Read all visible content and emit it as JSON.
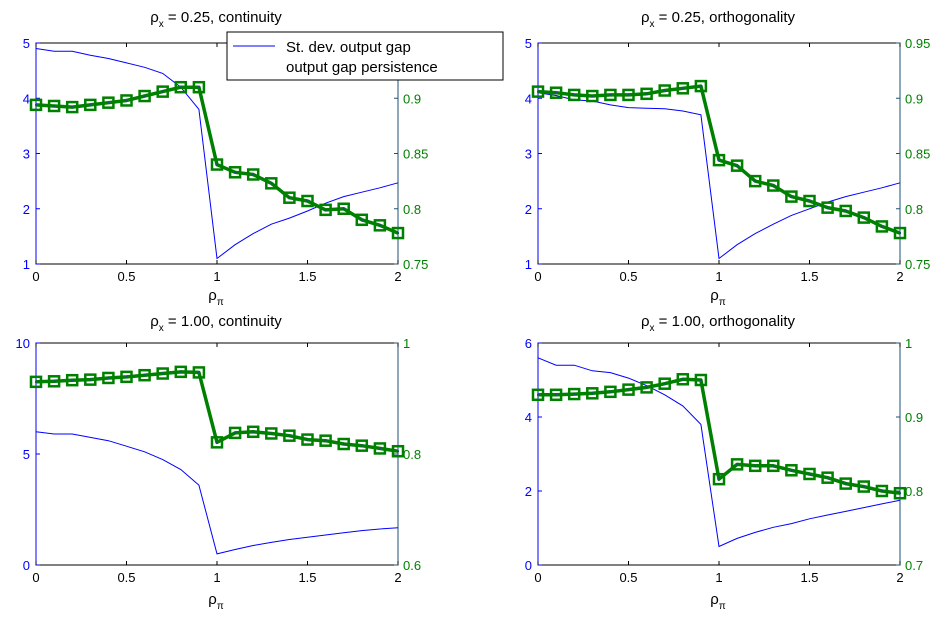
{
  "colors": {
    "left_axis": "#0000ff",
    "right_axis": "#008000",
    "std_line": "#0000ff",
    "persistence_line": "#008000",
    "axes_box": "#000000"
  },
  "legend": {
    "placement": "top-center",
    "entries": [
      "St. dev. output gap",
      "output gap persistence"
    ]
  },
  "chart_data": [
    {
      "type": "line",
      "title_base": "ρ",
      "title_sub": "x",
      "title_rest": " = 0.25, continuity",
      "xlabel_base": "ρ",
      "xlabel_sub": "π",
      "xlim": [
        0,
        2
      ],
      "x_ticks": [
        "0",
        "0.5",
        "1",
        "1.5",
        "2"
      ],
      "ylim_left": [
        1,
        5
      ],
      "y_ticks_left": [
        "1",
        "2",
        "3",
        "4",
        "5"
      ],
      "ylim_right": [
        0.75,
        0.95
      ],
      "y_ticks_right": [
        "0.75",
        "0.8",
        "0.85",
        "0.9"
      ],
      "x": [
        0,
        0.1,
        0.2,
        0.3,
        0.4,
        0.5,
        0.6,
        0.7,
        0.8,
        0.9,
        1.0,
        1.1,
        1.2,
        1.3,
        1.4,
        1.5,
        1.6,
        1.7,
        1.8,
        1.9,
        2.0
      ],
      "series": [
        {
          "name": "St. dev. output gap",
          "axis": "left",
          "values": [
            4.9,
            4.85,
            4.85,
            4.78,
            4.72,
            4.64,
            4.56,
            4.45,
            4.2,
            3.8,
            1.1,
            1.35,
            1.55,
            1.72,
            1.83,
            1.96,
            2.1,
            2.22,
            2.3,
            2.38,
            2.47
          ]
        },
        {
          "name": "output gap persistence",
          "axis": "right",
          "values": [
            0.894,
            0.893,
            0.892,
            0.894,
            0.896,
            0.898,
            0.902,
            0.906,
            0.91,
            0.91,
            0.84,
            0.833,
            0.831,
            0.823,
            0.81,
            0.807,
            0.799,
            0.8,
            0.79,
            0.785,
            0.778
          ]
        }
      ]
    },
    {
      "type": "line",
      "title_base": "ρ",
      "title_sub": "x",
      "title_rest": " = 0.25, orthogonality",
      "xlabel_base": "ρ",
      "xlabel_sub": "π",
      "xlim": [
        0,
        2
      ],
      "x_ticks": [
        "0",
        "0.5",
        "1",
        "1.5",
        "2"
      ],
      "ylim_left": [
        1,
        5
      ],
      "y_ticks_left": [
        "1",
        "2",
        "3",
        "4",
        "5"
      ],
      "ylim_right": [
        0.75,
        0.95
      ],
      "y_ticks_right": [
        "0.75",
        "0.8",
        "0.85",
        "0.9",
        "0.95"
      ],
      "x": [
        0,
        0.1,
        0.2,
        0.3,
        0.4,
        0.5,
        0.6,
        0.7,
        0.8,
        0.9,
        1.0,
        1.1,
        1.2,
        1.3,
        1.4,
        1.5,
        1.6,
        1.7,
        1.8,
        1.9,
        2.0
      ],
      "series": [
        {
          "name": "St. dev. output gap",
          "axis": "left",
          "values": [
            4.1,
            4.05,
            3.97,
            3.95,
            3.88,
            3.83,
            3.82,
            3.81,
            3.77,
            3.7,
            1.1,
            1.35,
            1.55,
            1.72,
            1.88,
            2.0,
            2.12,
            2.22,
            2.3,
            2.38,
            2.47
          ]
        },
        {
          "name": "output gap persistence",
          "axis": "right",
          "values": [
            0.906,
            0.905,
            0.903,
            0.902,
            0.903,
            0.903,
            0.904,
            0.907,
            0.909,
            0.911,
            0.844,
            0.839,
            0.825,
            0.821,
            0.811,
            0.807,
            0.801,
            0.798,
            0.792,
            0.784,
            0.778
          ]
        }
      ]
    },
    {
      "type": "line",
      "title_base": "ρ",
      "title_sub": "x",
      "title_rest": " = 1.00, continuity",
      "xlabel_base": "ρ",
      "xlabel_sub": "π",
      "xlim": [
        0,
        2
      ],
      "x_ticks": [
        "0",
        "0.5",
        "1",
        "1.5",
        "2"
      ],
      "ylim_left": [
        0,
        10
      ],
      "y_ticks_left": [
        "0",
        "5",
        "10"
      ],
      "ylim_right": [
        0.6,
        1.0
      ],
      "y_ticks_right": [
        "0.6",
        "0.8",
        "1"
      ],
      "x": [
        0,
        0.1,
        0.2,
        0.3,
        0.4,
        0.5,
        0.6,
        0.7,
        0.8,
        0.9,
        1.0,
        1.1,
        1.2,
        1.3,
        1.4,
        1.5,
        1.6,
        1.7,
        1.8,
        1.9,
        2.0
      ],
      "series": [
        {
          "name": "St. dev. output gap",
          "axis": "left",
          "values": [
            6.0,
            5.9,
            5.9,
            5.75,
            5.6,
            5.35,
            5.1,
            4.75,
            4.3,
            3.6,
            0.5,
            0.7,
            0.88,
            1.02,
            1.15,
            1.25,
            1.35,
            1.45,
            1.55,
            1.62,
            1.68
          ]
        },
        {
          "name": "output gap persistence",
          "axis": "right",
          "values": [
            0.93,
            0.931,
            0.933,
            0.934,
            0.937,
            0.939,
            0.942,
            0.945,
            0.948,
            0.947,
            0.821,
            0.838,
            0.84,
            0.837,
            0.833,
            0.826,
            0.824,
            0.818,
            0.815,
            0.81,
            0.805
          ]
        }
      ]
    },
    {
      "type": "line",
      "title_base": "ρ",
      "title_sub": "x",
      "title_rest": " = 1.00, orthogonality",
      "xlabel_base": "ρ",
      "xlabel_sub": "π",
      "xlim": [
        0,
        2
      ],
      "x_ticks": [
        "0",
        "0.5",
        "1",
        "1.5",
        "2"
      ],
      "ylim_left": [
        0,
        6
      ],
      "y_ticks_left": [
        "0",
        "2",
        "4",
        "6"
      ],
      "ylim_right": [
        0.7,
        1.0
      ],
      "y_ticks_right": [
        "0.7",
        "0.8",
        "0.9",
        "1"
      ],
      "x": [
        0,
        0.1,
        0.2,
        0.3,
        0.4,
        0.5,
        0.6,
        0.7,
        0.8,
        0.9,
        1.0,
        1.1,
        1.2,
        1.3,
        1.4,
        1.5,
        1.6,
        1.7,
        1.8,
        1.9,
        2.0
      ],
      "series": [
        {
          "name": "St. dev. output gap",
          "axis": "left",
          "values": [
            5.6,
            5.4,
            5.4,
            5.25,
            5.2,
            5.05,
            4.85,
            4.6,
            4.3,
            3.8,
            0.5,
            0.72,
            0.88,
            1.02,
            1.12,
            1.25,
            1.35,
            1.45,
            1.55,
            1.65,
            1.75
          ]
        },
        {
          "name": "output gap persistence",
          "axis": "right",
          "values": [
            0.93,
            0.93,
            0.931,
            0.932,
            0.934,
            0.937,
            0.94,
            0.945,
            0.951,
            0.95,
            0.816,
            0.836,
            0.834,
            0.834,
            0.828,
            0.823,
            0.818,
            0.81,
            0.806,
            0.8,
            0.797
          ]
        }
      ]
    }
  ]
}
